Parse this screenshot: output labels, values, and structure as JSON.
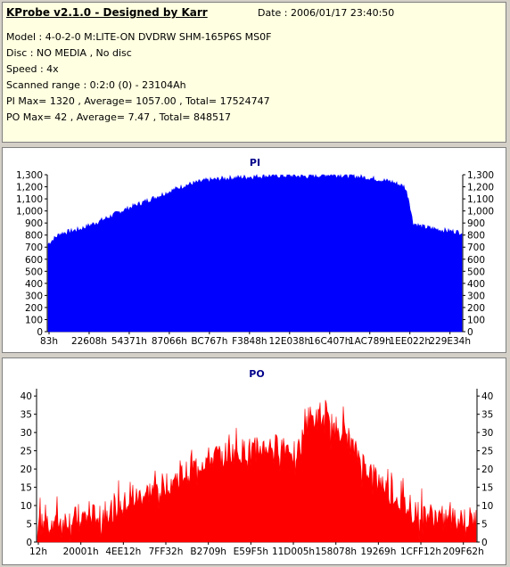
{
  "header": {
    "title": "KProbe v2.1.0 - Designed by Karr",
    "date": "Date : 2006/01/17 23:40:50",
    "lines": [
      "Model : 4-0-2-0 M:LITE-ON DVDRW SHM-165P6S MS0F",
      "Disc : NO MEDIA , No disc",
      "Speed : 4x",
      "Scanned range : 0:2:0 (0) - 23104Ah",
      "PI Max= 1320 , Average= 1057.00 , Total= 17524747",
      "PO Max= 42 , Average= 7.47 , Total= 848517"
    ]
  },
  "chart_data": [
    {
      "type": "area",
      "title": "PI",
      "color": "#0000ff",
      "ylim": [
        0,
        1300
      ],
      "ytick_labels": [
        "0",
        "100",
        "200",
        "300",
        "400",
        "500",
        "600",
        "700",
        "800",
        "900",
        "1,000",
        "1,100",
        "1,200",
        "1,300"
      ],
      "xtick_labels": [
        "83h",
        "22608h",
        "54371h",
        "87066h",
        "BC767h",
        "F3848h",
        "12E038h",
        "16C407h",
        "1AC789h",
        "1EE022h",
        "229E34h"
      ],
      "series": [
        {
          "x": [
            0,
            0.03,
            0.08,
            0.13,
            0.18,
            0.23,
            0.28,
            0.33,
            0.38,
            0.43,
            0.48,
            0.53,
            0.58,
            0.63,
            0.68,
            0.73,
            0.78,
            0.83,
            0.86,
            0.87,
            0.88,
            0.9,
            0.95,
            1.0
          ],
          "values": [
            720,
            810,
            850,
            920,
            1000,
            1070,
            1140,
            1210,
            1250,
            1270,
            1280,
            1290,
            1290,
            1285,
            1300,
            1290,
            1270,
            1240,
            1200,
            1100,
            900,
            870,
            840,
            820
          ]
        }
      ]
    },
    {
      "type": "area",
      "title": "PO",
      "color": "#ff0000",
      "ylim": [
        0,
        42
      ],
      "ytick_labels": [
        "0",
        "5",
        "10",
        "15",
        "20",
        "25",
        "30",
        "35",
        "40"
      ],
      "xtick_labels": [
        "12h",
        "20001h",
        "4EE12h",
        "7FF32h",
        "B2709h",
        "E59F5h",
        "11D005h",
        "158078h",
        "19269h",
        "1CFF12h",
        "209F62h"
      ],
      "series": [
        {
          "x": [
            0,
            0.08,
            0.13,
            0.18,
            0.23,
            0.28,
            0.33,
            0.38,
            0.43,
            0.48,
            0.53,
            0.58,
            0.6,
            0.61,
            0.65,
            0.7,
            0.72,
            0.75,
            0.8,
            0.85,
            0.9,
            0.95,
            1.0
          ],
          "values": [
            5,
            6,
            7,
            9,
            12,
            15,
            18,
            22,
            24,
            25,
            26,
            26,
            25,
            34,
            33,
            30,
            25,
            20,
            14,
            8,
            7,
            6,
            6
          ]
        }
      ]
    }
  ]
}
